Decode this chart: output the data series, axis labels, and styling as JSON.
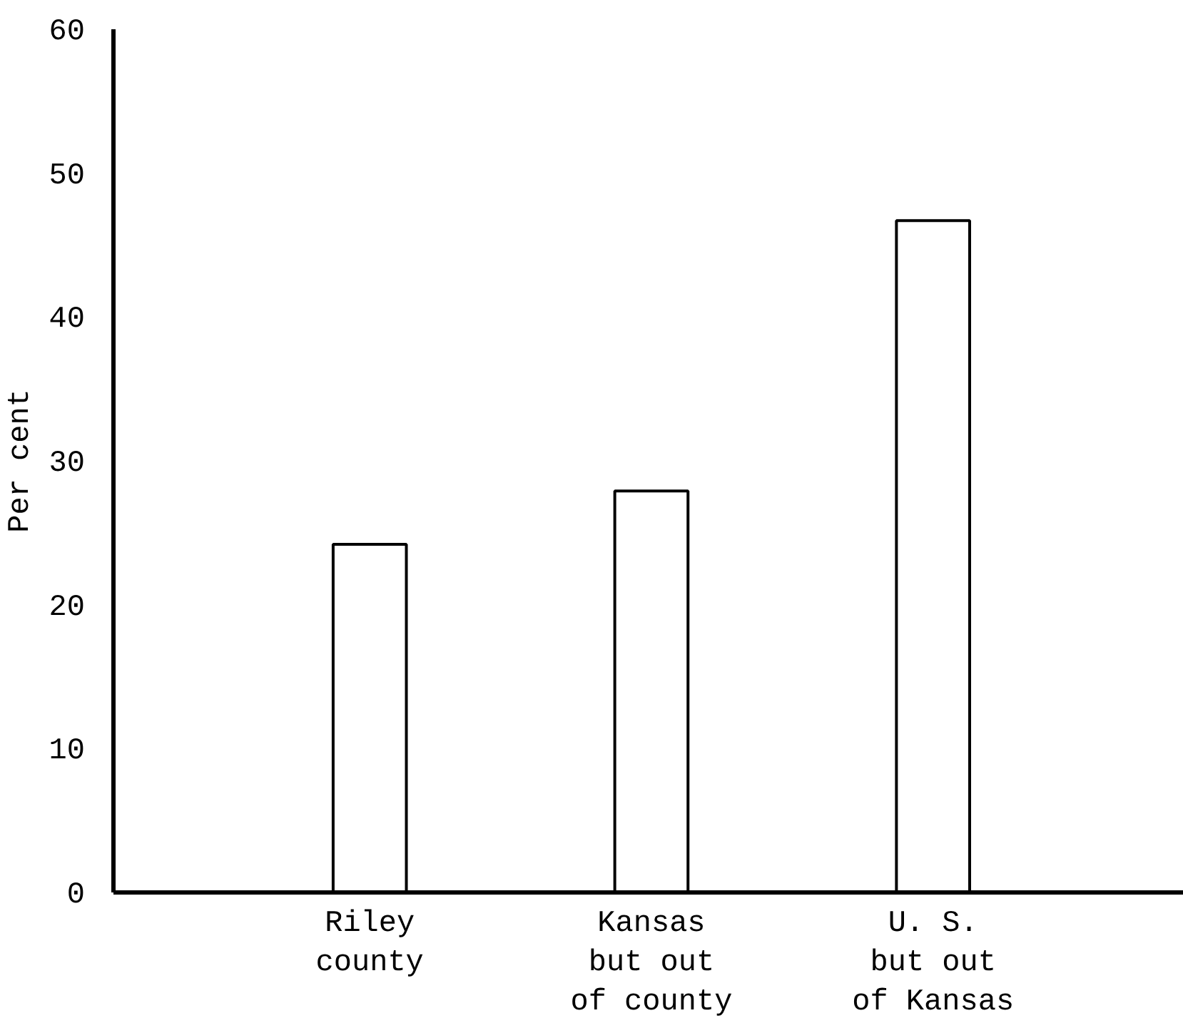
{
  "chart_data": {
    "type": "bar",
    "ylabel": "Per cent",
    "categories": [
      "Riley\ncounty",
      "Kansas\nbut out\nof county",
      "U. S.\nbut out\nof Kansas"
    ],
    "values": [
      24.2,
      27.9,
      46.7
    ],
    "color": "#ffffff",
    "ylim": [
      0,
      60
    ],
    "yticks": [
      0,
      10,
      20,
      30,
      40,
      50,
      60
    ],
    "grid": false
  }
}
